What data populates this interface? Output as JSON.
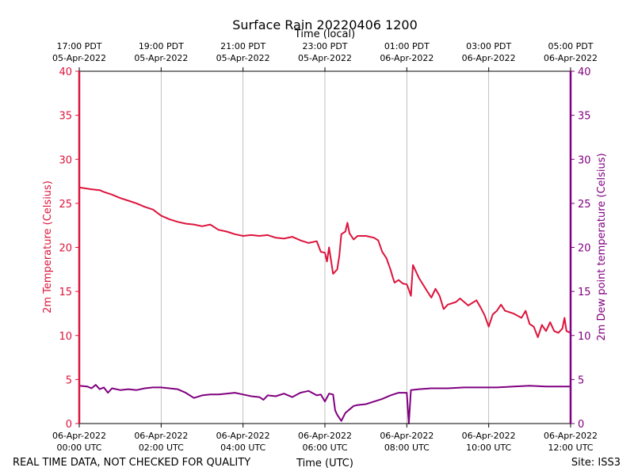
{
  "chart_data": {
    "type": "line",
    "title": "Surface Rain 20220406 1200",
    "top_axis_label": "Time (local)",
    "xlabel": "Time (UTC)",
    "ylabel_left": "2m Temperature (Celsius)",
    "ylabel_right": "2m Dew point temperature (Celsius)",
    "ylim": [
      0,
      40
    ],
    "yticks": [
      0,
      5,
      10,
      15,
      20,
      25,
      30,
      35,
      40
    ],
    "xlim_hours": [
      0,
      12
    ],
    "grid": "vertical",
    "x_ticks_utc": [
      {
        "hour": 0,
        "date": "06-Apr-2022",
        "time": "00:00 UTC"
      },
      {
        "hour": 2,
        "date": "06-Apr-2022",
        "time": "02:00 UTC"
      },
      {
        "hour": 4,
        "date": "06-Apr-2022",
        "time": "04:00 UTC"
      },
      {
        "hour": 6,
        "date": "06-Apr-2022",
        "time": "06:00 UTC"
      },
      {
        "hour": 8,
        "date": "06-Apr-2022",
        "time": "08:00 UTC"
      },
      {
        "hour": 10,
        "date": "06-Apr-2022",
        "time": "10:00 UTC"
      },
      {
        "hour": 12,
        "date": "06-Apr-2022",
        "time": "12:00 UTC"
      }
    ],
    "x_ticks_local": [
      {
        "hour": 0,
        "time": "17:00 PDT",
        "date": "05-Apr-2022"
      },
      {
        "hour": 2,
        "time": "19:00 PDT",
        "date": "05-Apr-2022"
      },
      {
        "hour": 4,
        "time": "21:00 PDT",
        "date": "05-Apr-2022"
      },
      {
        "hour": 6,
        "time": "23:00 PDT",
        "date": "05-Apr-2022"
      },
      {
        "hour": 8,
        "time": "01:00 PDT",
        "date": "06-Apr-2022"
      },
      {
        "hour": 10,
        "time": "03:00 PDT",
        "date": "06-Apr-2022"
      },
      {
        "hour": 12,
        "time": "05:00 PDT",
        "date": "06-Apr-2022"
      }
    ],
    "series": [
      {
        "name": "2m Temperature",
        "axis": "left",
        "color": "#dc143c",
        "points": [
          [
            0.0,
            26.8
          ],
          [
            0.3,
            26.6
          ],
          [
            0.5,
            26.5
          ],
          [
            0.6,
            26.3
          ],
          [
            0.8,
            26.0
          ],
          [
            1.0,
            25.6
          ],
          [
            1.2,
            25.3
          ],
          [
            1.4,
            25.0
          ],
          [
            1.6,
            24.6
          ],
          [
            1.8,
            24.3
          ],
          [
            2.0,
            23.6
          ],
          [
            2.2,
            23.2
          ],
          [
            2.4,
            22.9
          ],
          [
            2.6,
            22.7
          ],
          [
            2.8,
            22.6
          ],
          [
            3.0,
            22.4
          ],
          [
            3.2,
            22.6
          ],
          [
            3.4,
            22.0
          ],
          [
            3.6,
            21.8
          ],
          [
            3.8,
            21.5
          ],
          [
            4.0,
            21.3
          ],
          [
            4.2,
            21.4
          ],
          [
            4.4,
            21.3
          ],
          [
            4.6,
            21.4
          ],
          [
            4.8,
            21.1
          ],
          [
            5.0,
            21.0
          ],
          [
            5.2,
            21.2
          ],
          [
            5.4,
            20.8
          ],
          [
            5.6,
            20.5
          ],
          [
            5.8,
            20.7
          ],
          [
            5.9,
            19.5
          ],
          [
            6.0,
            19.4
          ],
          [
            6.05,
            18.4
          ],
          [
            6.1,
            20.0
          ],
          [
            6.2,
            17.0
          ],
          [
            6.3,
            17.5
          ],
          [
            6.35,
            19.0
          ],
          [
            6.4,
            21.5
          ],
          [
            6.5,
            21.8
          ],
          [
            6.55,
            22.8
          ],
          [
            6.6,
            21.6
          ],
          [
            6.7,
            20.9
          ],
          [
            6.8,
            21.3
          ],
          [
            7.0,
            21.3
          ],
          [
            7.2,
            21.1
          ],
          [
            7.3,
            20.8
          ],
          [
            7.4,
            19.5
          ],
          [
            7.5,
            18.8
          ],
          [
            7.6,
            17.5
          ],
          [
            7.65,
            16.7
          ],
          [
            7.7,
            16.0
          ],
          [
            7.8,
            16.3
          ],
          [
            7.9,
            15.9
          ],
          [
            8.0,
            15.8
          ],
          [
            8.05,
            15.2
          ],
          [
            8.1,
            14.5
          ],
          [
            8.15,
            18.0
          ],
          [
            8.3,
            16.5
          ],
          [
            8.5,
            15.0
          ],
          [
            8.6,
            14.3
          ],
          [
            8.7,
            15.3
          ],
          [
            8.8,
            14.5
          ],
          [
            8.9,
            13.0
          ],
          [
            9.0,
            13.5
          ],
          [
            9.2,
            13.8
          ],
          [
            9.3,
            14.2
          ],
          [
            9.5,
            13.4
          ],
          [
            9.7,
            14.0
          ],
          [
            9.8,
            13.2
          ],
          [
            9.9,
            12.3
          ],
          [
            10.0,
            11.0
          ],
          [
            10.1,
            12.4
          ],
          [
            10.2,
            12.8
          ],
          [
            10.3,
            13.5
          ],
          [
            10.4,
            12.8
          ],
          [
            10.6,
            12.5
          ],
          [
            10.8,
            12.0
          ],
          [
            10.9,
            12.8
          ],
          [
            11.0,
            11.3
          ],
          [
            11.1,
            11.0
          ],
          [
            11.2,
            9.8
          ],
          [
            11.3,
            11.2
          ],
          [
            11.4,
            10.5
          ],
          [
            11.5,
            11.5
          ],
          [
            11.6,
            10.5
          ],
          [
            11.7,
            10.3
          ],
          [
            11.8,
            10.8
          ],
          [
            11.85,
            12.0
          ],
          [
            11.9,
            10.5
          ],
          [
            12.0,
            10.3
          ]
        ]
      },
      {
        "name": "2m Dew point temperature",
        "axis": "right",
        "color": "#800080",
        "points": [
          [
            0.0,
            4.3
          ],
          [
            0.2,
            4.2
          ],
          [
            0.3,
            4.0
          ],
          [
            0.4,
            4.4
          ],
          [
            0.5,
            3.9
          ],
          [
            0.6,
            4.1
          ],
          [
            0.7,
            3.5
          ],
          [
            0.8,
            4.0
          ],
          [
            1.0,
            3.8
          ],
          [
            1.2,
            3.9
          ],
          [
            1.4,
            3.8
          ],
          [
            1.6,
            4.0
          ],
          [
            1.8,
            4.1
          ],
          [
            2.0,
            4.1
          ],
          [
            2.2,
            4.0
          ],
          [
            2.4,
            3.9
          ],
          [
            2.6,
            3.5
          ],
          [
            2.7,
            3.2
          ],
          [
            2.8,
            2.9
          ],
          [
            3.0,
            3.2
          ],
          [
            3.2,
            3.3
          ],
          [
            3.4,
            3.3
          ],
          [
            3.6,
            3.4
          ],
          [
            3.8,
            3.5
          ],
          [
            4.0,
            3.3
          ],
          [
            4.2,
            3.1
          ],
          [
            4.4,
            3.0
          ],
          [
            4.5,
            2.7
          ],
          [
            4.6,
            3.2
          ],
          [
            4.8,
            3.1
          ],
          [
            5.0,
            3.4
          ],
          [
            5.2,
            3.0
          ],
          [
            5.4,
            3.5
          ],
          [
            5.6,
            3.7
          ],
          [
            5.8,
            3.2
          ],
          [
            5.9,
            3.3
          ],
          [
            6.0,
            2.5
          ],
          [
            6.1,
            3.4
          ],
          [
            6.2,
            3.3
          ],
          [
            6.25,
            1.5
          ],
          [
            6.3,
            1.0
          ],
          [
            6.4,
            0.3
          ],
          [
            6.5,
            1.2
          ],
          [
            6.6,
            1.6
          ],
          [
            6.7,
            2.0
          ],
          [
            6.8,
            2.1
          ],
          [
            7.0,
            2.2
          ],
          [
            7.2,
            2.5
          ],
          [
            7.4,
            2.8
          ],
          [
            7.6,
            3.2
          ],
          [
            7.8,
            3.5
          ],
          [
            8.0,
            3.5
          ],
          [
            8.05,
            0.0
          ],
          [
            8.1,
            3.8
          ],
          [
            8.3,
            3.9
          ],
          [
            8.6,
            4.0
          ],
          [
            9.0,
            4.0
          ],
          [
            9.4,
            4.1
          ],
          [
            9.8,
            4.1
          ],
          [
            10.2,
            4.1
          ],
          [
            10.6,
            4.2
          ],
          [
            11.0,
            4.3
          ],
          [
            11.4,
            4.2
          ],
          [
            11.8,
            4.2
          ],
          [
            12.0,
            4.2
          ]
        ]
      }
    ]
  },
  "footer": {
    "left": "REAL TIME DATA, NOT CHECKED FOR QUALITY",
    "right": "Site: ISS3"
  }
}
